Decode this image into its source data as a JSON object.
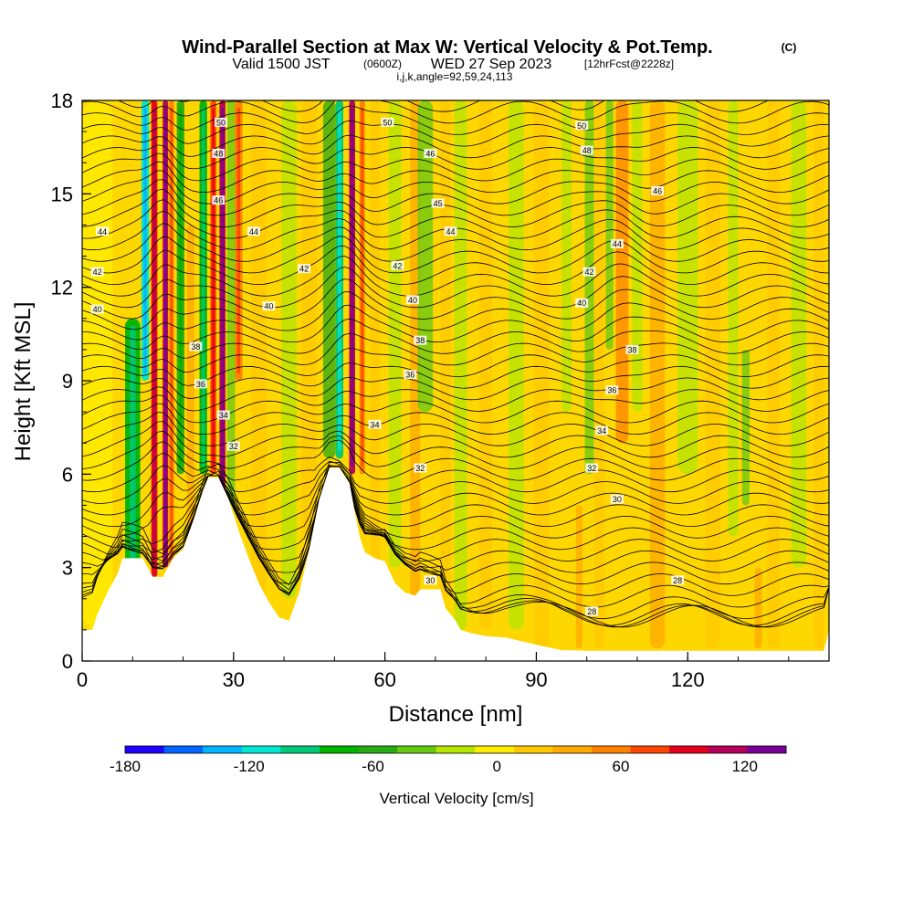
{
  "chart_data": {
    "type": "heatmap",
    "title": "Wind-Parallel Section at Max W: Vertical Velocity & Pot.Temp.",
    "title_suffix": "(C)",
    "subtitle": {
      "valid": "Valid 1500 JST",
      "utc": "(0600Z)",
      "date": "WED 27 Sep 2023",
      "forecast": "[12hrFcst@2228z]"
    },
    "params": "i,j,k,angle=92,59,24,113",
    "xlabel": "Distance [nm]",
    "ylabel": "Height [Kft MSL]",
    "xlim": [
      0,
      148
    ],
    "ylim": [
      0,
      18
    ],
    "xticks": [
      "0",
      "30",
      "60",
      "90",
      "120"
    ],
    "xtick_values": [
      0,
      30,
      60,
      90,
      120
    ],
    "yticks": [
      "0",
      "3",
      "6",
      "9",
      "12",
      "15",
      "18"
    ],
    "ytick_values": [
      0,
      3,
      6,
      9,
      12,
      15,
      18
    ],
    "colorbar": {
      "label": "Vertical Velocity [cm/s]",
      "range": [
        -180,
        140
      ],
      "ticks": [
        "-180",
        "-120",
        "-60",
        "0",
        "60",
        "120"
      ],
      "tick_values": [
        -180,
        -120,
        -60,
        0,
        60,
        120
      ],
      "colors": [
        "#1e00ff",
        "#0064ff",
        "#00b4ff",
        "#00e6d2",
        "#00c878",
        "#00b400",
        "#28aa14",
        "#64c814",
        "#b4e600",
        "#ffee00",
        "#ffc800",
        "#ffaa00",
        "#ff8200",
        "#ff4600",
        "#e6001e",
        "#b4005a",
        "#780096"
      ]
    },
    "terrain_kft": [
      [
        0,
        1.0
      ],
      [
        2,
        1.0
      ],
      [
        3,
        1.5
      ],
      [
        5,
        2.2
      ],
      [
        7,
        2.8
      ],
      [
        8,
        3.3
      ],
      [
        12,
        3.3
      ],
      [
        14,
        2.7
      ],
      [
        16,
        2.7
      ],
      [
        18,
        3.3
      ],
      [
        20,
        3.6
      ],
      [
        22,
        4.5
      ],
      [
        24,
        5.5
      ],
      [
        25,
        5.9
      ],
      [
        27,
        5.9
      ],
      [
        29,
        5.2
      ],
      [
        31,
        4.2
      ],
      [
        33,
        3.3
      ],
      [
        35,
        2.5
      ],
      [
        37,
        1.9
      ],
      [
        39,
        1.4
      ],
      [
        41,
        1.3
      ],
      [
        43,
        2.2
      ],
      [
        45,
        3.6
      ],
      [
        47,
        5.2
      ],
      [
        49,
        6.2
      ],
      [
        51,
        6.2
      ],
      [
        53,
        5.7
      ],
      [
        54,
        4.8
      ],
      [
        55,
        4.0
      ],
      [
        56,
        3.5
      ],
      [
        58,
        3.3
      ],
      [
        60,
        3.2
      ],
      [
        62,
        2.5
      ],
      [
        64,
        2.2
      ],
      [
        66,
        2.1
      ],
      [
        67,
        2.3
      ],
      [
        69,
        2.3
      ],
      [
        71,
        2.3
      ],
      [
        72,
        1.7
      ],
      [
        74,
        1.3
      ],
      [
        75,
        1.0
      ],
      [
        77,
        0.9
      ],
      [
        80,
        0.8
      ],
      [
        84,
        0.75
      ],
      [
        88,
        0.6
      ],
      [
        92,
        0.45
      ],
      [
        95,
        0.35
      ],
      [
        100,
        0.33
      ],
      [
        147,
        0.33
      ],
      [
        148,
        1.0
      ]
    ],
    "bands": [
      {
        "x": 3,
        "w": 6,
        "val": -10,
        "zmin": 1,
        "zmax": 18
      },
      {
        "x": 10,
        "w": 3,
        "val": -80,
        "zmin": 3,
        "zmax": 11
      },
      {
        "x": 12.5,
        "w": 1.5,
        "val": -110,
        "zmin": 9,
        "zmax": 18
      },
      {
        "x": 14.3,
        "w": 1.2,
        "val": 95,
        "zmin": 2.7,
        "zmax": 18
      },
      {
        "x": 16.5,
        "w": 1.1,
        "val": 110,
        "zmin": 3,
        "zmax": 18
      },
      {
        "x": 17.7,
        "w": 1.0,
        "val": 60,
        "zmin": 3,
        "zmax": 18
      },
      {
        "x": 19.5,
        "w": 1.5,
        "val": -60,
        "zmin": 6,
        "zmax": 18
      },
      {
        "x": 21.5,
        "w": 1.5,
        "val": 35,
        "zmin": 4,
        "zmax": 14
      },
      {
        "x": 24,
        "w": 1.5,
        "val": -70,
        "zmin": 6,
        "zmax": 18
      },
      {
        "x": 26,
        "w": 1.2,
        "val": 70,
        "zmin": 6,
        "zmax": 18
      },
      {
        "x": 27.8,
        "w": 1.2,
        "val": 110,
        "zmin": 5,
        "zmax": 18
      },
      {
        "x": 29.5,
        "w": 1.6,
        "val": -30,
        "zmin": 5,
        "zmax": 18
      },
      {
        "x": 31,
        "w": 1.5,
        "val": 60,
        "zmin": 9,
        "zmax": 18
      },
      {
        "x": 35,
        "w": 3,
        "val": 20,
        "zmin": 2,
        "zmax": 18
      },
      {
        "x": 41,
        "w": 3,
        "val": -15,
        "zmin": 2,
        "zmax": 18
      },
      {
        "x": 45,
        "w": 3,
        "val": 20,
        "zmin": 4,
        "zmax": 18
      },
      {
        "x": 49,
        "w": 2.5,
        "val": -50,
        "zmin": 6.5,
        "zmax": 18
      },
      {
        "x": 51,
        "w": 1.5,
        "val": -100,
        "zmin": 6.5,
        "zmax": 18
      },
      {
        "x": 53.5,
        "w": 1.2,
        "val": 110,
        "zmin": 6,
        "zmax": 18
      },
      {
        "x": 55.5,
        "w": 1.1,
        "val": 60,
        "zmin": 6,
        "zmax": 18
      },
      {
        "x": 58,
        "w": 2,
        "val": 25,
        "zmin": 3,
        "zmax": 18
      },
      {
        "x": 62,
        "w": 2.5,
        "val": -20,
        "zmin": 3,
        "zmax": 18
      },
      {
        "x": 66,
        "w": 2,
        "val": 30,
        "zmin": 2,
        "zmax": 18
      },
      {
        "x": 68,
        "w": 3,
        "val": -40,
        "zmin": 8,
        "zmax": 18
      },
      {
        "x": 72,
        "w": 2,
        "val": 20,
        "zmin": 2,
        "zmax": 18
      },
      {
        "x": 75,
        "w": 2.5,
        "val": -25,
        "zmin": 1,
        "zmax": 18
      },
      {
        "x": 80,
        "w": 2.5,
        "val": 25,
        "zmin": 1,
        "zmax": 18
      },
      {
        "x": 86,
        "w": 3,
        "val": -15,
        "zmin": 1,
        "zmax": 18
      },
      {
        "x": 91,
        "w": 3,
        "val": 20,
        "zmin": 0.4,
        "zmax": 18
      },
      {
        "x": 96,
        "w": 2,
        "val": -25,
        "zmin": 8,
        "zmax": 18
      },
      {
        "x": 98.5,
        "w": 1.3,
        "val": 45,
        "zmin": 0.4,
        "zmax": 5
      },
      {
        "x": 100.5,
        "w": 1.8,
        "val": -40,
        "zmin": 6,
        "zmax": 18
      },
      {
        "x": 102.5,
        "w": 2,
        "val": 25,
        "zmin": 0.4,
        "zmax": 18
      },
      {
        "x": 104.5,
        "w": 1.5,
        "val": -35,
        "zmin": 10,
        "zmax": 18
      },
      {
        "x": 107,
        "w": 2.5,
        "val": 55,
        "zmin": 7,
        "zmax": 18
      },
      {
        "x": 110,
        "w": 2,
        "val": -20,
        "zmin": 8,
        "zmax": 18
      },
      {
        "x": 114,
        "w": 3,
        "val": 30,
        "zmin": 0.4,
        "zmax": 18
      },
      {
        "x": 120,
        "w": 4,
        "val": -15,
        "zmin": 6,
        "zmax": 18
      },
      {
        "x": 125,
        "w": 3,
        "val": 25,
        "zmin": 0.4,
        "zmax": 18
      },
      {
        "x": 129,
        "w": 2,
        "val": -20,
        "zmin": 4,
        "zmax": 18
      },
      {
        "x": 131.5,
        "w": 1.5,
        "val": -45,
        "zmin": 5,
        "zmax": 10
      },
      {
        "x": 134,
        "w": 1.5,
        "val": 45,
        "zmin": 0.4,
        "zmax": 3
      },
      {
        "x": 137,
        "w": 2.5,
        "val": 20,
        "zmin": 0.4,
        "zmax": 18
      },
      {
        "x": 142,
        "w": 3,
        "val": -20,
        "zmin": 3,
        "zmax": 18
      },
      {
        "x": 146,
        "w": 2,
        "val": 15,
        "zmin": 0.4,
        "zmax": 18
      }
    ],
    "contour_labels": [
      {
        "x": 27.5,
        "z": 17.3,
        "text": "50"
      },
      {
        "x": 60.5,
        "z": 17.3,
        "text": "50"
      },
      {
        "x": 99,
        "z": 17.2,
        "text": "50"
      },
      {
        "x": 27,
        "z": 16.3,
        "text": "48"
      },
      {
        "x": 69,
        "z": 16.3,
        "text": "46"
      },
      {
        "x": 100,
        "z": 16.4,
        "text": "48"
      },
      {
        "x": 27,
        "z": 14.8,
        "text": "46"
      },
      {
        "x": 70.5,
        "z": 14.7,
        "text": "45"
      },
      {
        "x": 114,
        "z": 15.1,
        "text": "46"
      },
      {
        "x": 4,
        "z": 13.8,
        "text": "44"
      },
      {
        "x": 34,
        "z": 13.8,
        "text": "44"
      },
      {
        "x": 73,
        "z": 13.8,
        "text": "44"
      },
      {
        "x": 106,
        "z": 13.4,
        "text": "44"
      },
      {
        "x": 3,
        "z": 12.5,
        "text": "42"
      },
      {
        "x": 44,
        "z": 12.6,
        "text": "42"
      },
      {
        "x": 62.5,
        "z": 12.7,
        "text": "42"
      },
      {
        "x": 100.5,
        "z": 12.5,
        "text": "42"
      },
      {
        "x": 3,
        "z": 11.3,
        "text": "40"
      },
      {
        "x": 37,
        "z": 11.4,
        "text": "40"
      },
      {
        "x": 65.5,
        "z": 11.6,
        "text": "40"
      },
      {
        "x": 99,
        "z": 11.5,
        "text": "40"
      },
      {
        "x": 22.5,
        "z": 10.1,
        "text": "38"
      },
      {
        "x": 67,
        "z": 10.3,
        "text": "38"
      },
      {
        "x": 109,
        "z": 10.0,
        "text": "38"
      },
      {
        "x": 23.5,
        "z": 8.9,
        "text": "36"
      },
      {
        "x": 65,
        "z": 9.2,
        "text": "36"
      },
      {
        "x": 105,
        "z": 8.7,
        "text": "36"
      },
      {
        "x": 28,
        "z": 7.9,
        "text": "34"
      },
      {
        "x": 58,
        "z": 7.6,
        "text": "34"
      },
      {
        "x": 103,
        "z": 7.4,
        "text": "34"
      },
      {
        "x": 30,
        "z": 6.9,
        "text": "32"
      },
      {
        "x": 67,
        "z": 6.2,
        "text": "32"
      },
      {
        "x": 101,
        "z": 6.2,
        "text": "32"
      },
      {
        "x": 106,
        "z": 5.2,
        "text": "30"
      },
      {
        "x": 69,
        "z": 2.6,
        "text": "30"
      },
      {
        "x": 101,
        "z": 1.6,
        "text": "28"
      },
      {
        "x": 118,
        "z": 2.6,
        "text": "28"
      }
    ]
  }
}
